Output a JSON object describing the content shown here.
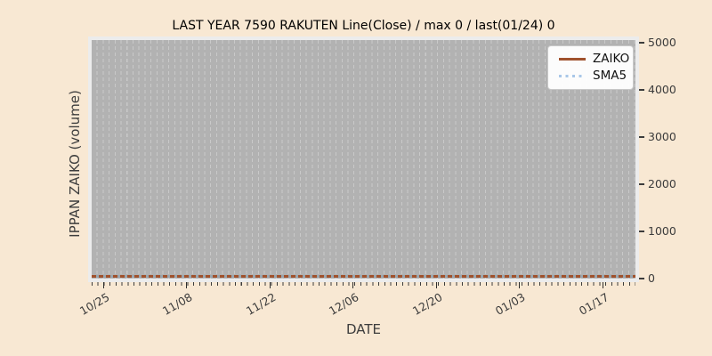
{
  "title": "LAST YEAR 7590 RAKUTEN Line(Close) / max 0 / last(01/24) 0",
  "axes": {
    "xlabel": "DATE",
    "ylabel": "IPPAN ZAIKO (volume)",
    "x_ticks": [
      "10/25",
      "11/08",
      "11/22",
      "12/06",
      "12/20",
      "01/03",
      "01/17"
    ],
    "y_ticks": [
      "5000",
      "4000",
      "3000",
      "2000",
      "1000",
      "0"
    ]
  },
  "legend": {
    "items": [
      {
        "label": "ZAIKO",
        "color": "#a0522d",
        "line_style": "solid"
      },
      {
        "label": "SMA5",
        "color": "#a9c7e8",
        "line_style": "dotted"
      }
    ]
  },
  "colors": {
    "figure_bg": "#f8e8d3",
    "plot_bg": "#b2b2b2",
    "gridline": "#c9c9c9",
    "zaiko_line": "#a0522d",
    "sma5_line": "#a9c7e8",
    "tick_text": "#3b3b3b"
  },
  "chart_data": {
    "type": "line",
    "title": "LAST YEAR 7590 RAKUTEN Line(Close) / max 0 / last(01/24) 0",
    "xlabel": "DATE",
    "ylabel": "IPPAN ZAIKO (volume)",
    "x": [
      "10/25",
      "11/08",
      "11/22",
      "12/06",
      "12/20",
      "01/03",
      "01/17"
    ],
    "series": [
      {
        "name": "ZAIKO",
        "style": "solid",
        "color": "#a0522d",
        "values": [
          0,
          0,
          0,
          0,
          0,
          0,
          0
        ]
      },
      {
        "name": "SMA5",
        "style": "dotted",
        "color": "#a9c7e8",
        "values": [
          0,
          0,
          0,
          0,
          0,
          0,
          0
        ]
      }
    ],
    "max": 0,
    "last_date": "01/24",
    "last_value": 0,
    "ylim": [
      0,
      5000
    ],
    "grid": "vertical dashed daily gridlines on gray plot background",
    "legend_position": "upper right"
  }
}
